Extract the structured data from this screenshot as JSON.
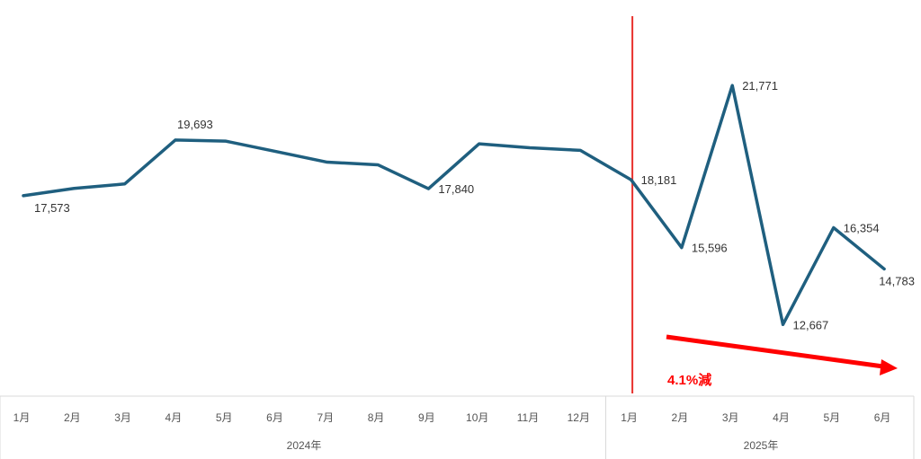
{
  "chart_data": {
    "type": "line",
    "title": "",
    "xlabel": "",
    "ylabel": "",
    "ylim": [
      11000,
      24000
    ],
    "grid": false,
    "legend": "none",
    "line_color": "#1f5f7f",
    "categories": [
      "1月",
      "2月",
      "3月",
      "4月",
      "5月",
      "6月",
      "7月",
      "8月",
      "9月",
      "10月",
      "11月",
      "12月",
      "1月",
      "2月",
      "3月",
      "4月",
      "5月",
      "6月"
    ],
    "groups": [
      {
        "label": "2024年",
        "start": 0,
        "end": 11
      },
      {
        "label": "2025年",
        "start": 12,
        "end": 17
      }
    ],
    "series": [
      {
        "values": [
          17573,
          17850,
          18020,
          19693,
          19650,
          19250,
          18850,
          18750,
          17840,
          19550,
          19400,
          19300,
          18181,
          15596,
          21771,
          12667,
          16354,
          14783
        ]
      }
    ],
    "data_labels": [
      {
        "index": 0,
        "text": "17,573",
        "pos": "below-right"
      },
      {
        "index": 3,
        "text": "19,693",
        "pos": "above"
      },
      {
        "index": 8,
        "text": "17,840",
        "pos": "right"
      },
      {
        "index": 12,
        "text": "18,181",
        "pos": "right"
      },
      {
        "index": 13,
        "text": "15,596",
        "pos": "right"
      },
      {
        "index": 14,
        "text": "21,771",
        "pos": "right"
      },
      {
        "index": 15,
        "text": "12,667",
        "pos": "right"
      },
      {
        "index": 16,
        "text": "16,354",
        "pos": "right"
      },
      {
        "index": 17,
        "text": "14,783",
        "pos": "below"
      }
    ],
    "divider": {
      "index": 12,
      "color": "#e8312d"
    },
    "annotation": {
      "text": "4.1%減",
      "color": "#ff0000",
      "arrow_direction": "down-right"
    }
  }
}
